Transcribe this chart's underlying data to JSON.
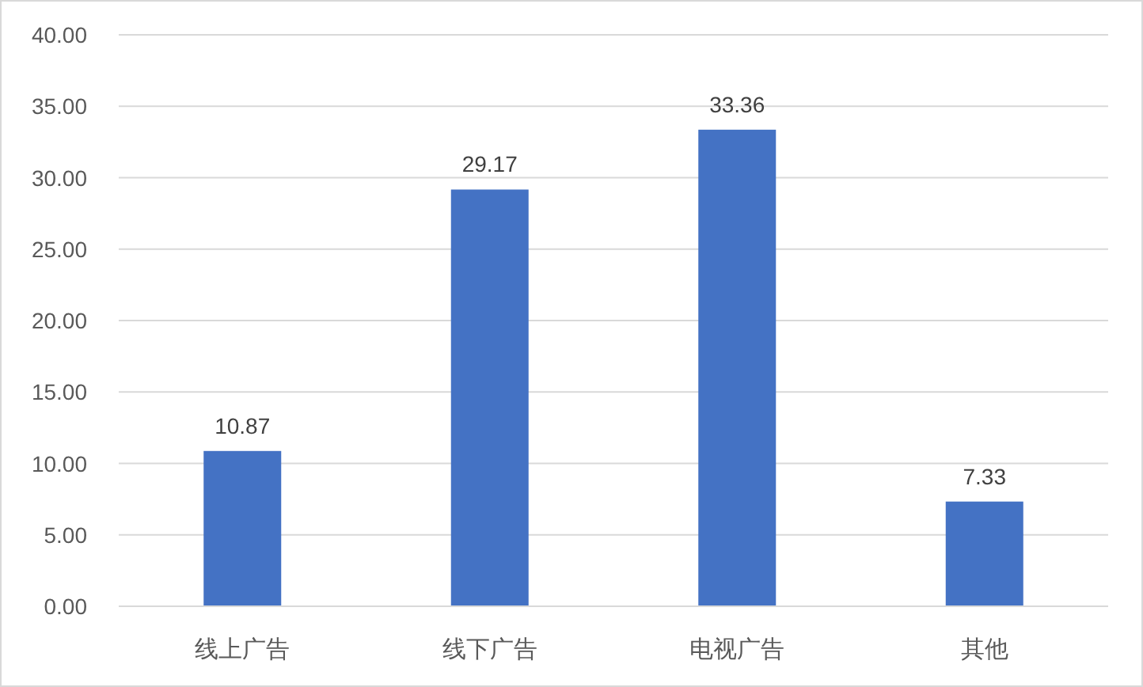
{
  "chart_data": {
    "type": "bar",
    "categories": [
      "线上广告",
      "线下广告",
      "电视广告",
      "其他"
    ],
    "values": [
      10.87,
      29.17,
      33.36,
      7.33
    ],
    "color": "#4472c4",
    "ylim": [
      0,
      40
    ],
    "yticks": [
      {
        "value": 0,
        "label": "0.00"
      },
      {
        "value": 5,
        "label": "5.00"
      },
      {
        "value": 10,
        "label": "10.00"
      },
      {
        "value": 15,
        "label": "15.00"
      },
      {
        "value": 20,
        "label": "20.00"
      },
      {
        "value": 25,
        "label": "25.00"
      },
      {
        "value": 30,
        "label": "30.00"
      },
      {
        "value": 35,
        "label": "35.00"
      },
      {
        "value": 40,
        "label": "40.00"
      }
    ],
    "grid": "y",
    "data_labels": true
  }
}
